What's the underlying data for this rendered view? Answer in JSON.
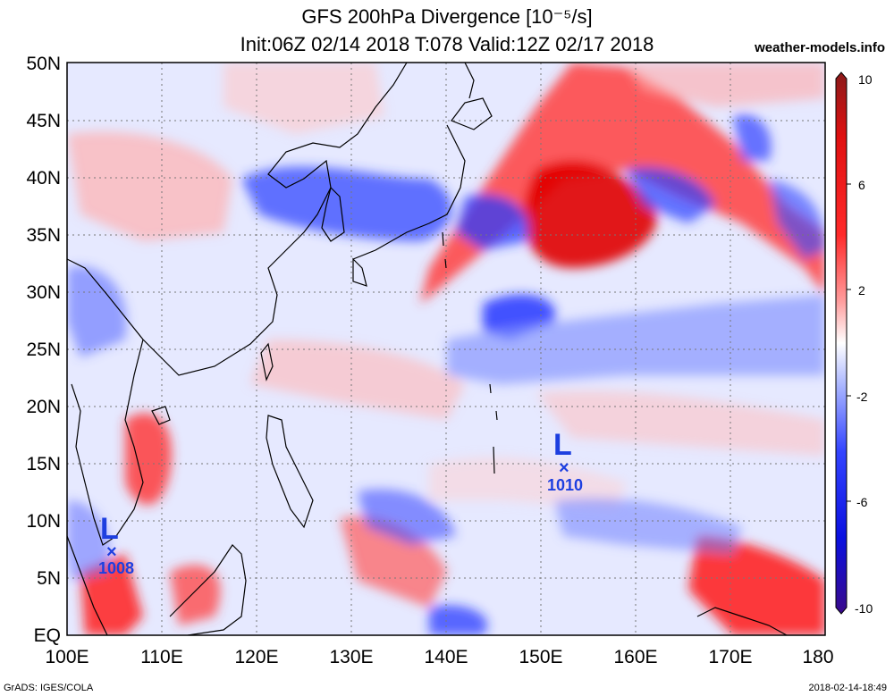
{
  "title_line1": "GFS 200hPa Divergence [10⁻⁵/s]",
  "title_line2": "Init:06Z 02/14 2018 T:078 Valid:12Z 02/17 2018",
  "site": "weather-models.info",
  "credit": "GrADS: IGES/COLA",
  "timestamp": "2018-02-14-18:49",
  "lon_ticks": [
    "100E",
    "110E",
    "120E",
    "130E",
    "140E",
    "150E",
    "160E",
    "170E",
    "180"
  ],
  "lat_ticks": [
    "EQ",
    "5N",
    "10N",
    "15N",
    "20N",
    "25N",
    "30N",
    "35N",
    "40N",
    "45N",
    "50N"
  ],
  "colorbar": {
    "labels": [
      "10",
      "6",
      "2",
      "-2",
      "-6",
      "-10"
    ],
    "range": [
      -10,
      10
    ],
    "colors": {
      "max": "#8b1a1a",
      "pos": "#ff0000",
      "neutral": "#ffffff",
      "neg": "#0000ff",
      "min": "#3a0a8a"
    }
  },
  "lows": [
    {
      "letter": "L",
      "pressure": "1008",
      "lon": 105,
      "lat": 7.5
    },
    {
      "letter": "L",
      "pressure": "1010",
      "lon": 152.5,
      "lat": 14.5
    }
  ]
}
